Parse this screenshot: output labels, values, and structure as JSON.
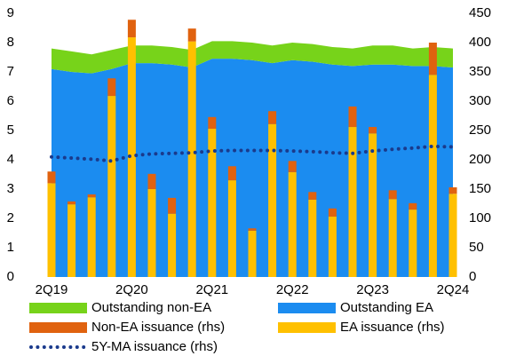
{
  "chart_data": {
    "type": "combo",
    "categories": [
      "2Q19",
      null,
      null,
      null,
      "2Q20",
      null,
      null,
      null,
      "2Q21",
      null,
      null,
      null,
      "2Q22",
      null,
      null,
      null,
      "2Q23",
      null,
      null,
      null,
      "2Q24"
    ],
    "ylim": [
      0,
      9
    ],
    "yticks": [
      0,
      1,
      2,
      3,
      4,
      5,
      6,
      7,
      8,
      9
    ],
    "y2lim": [
      0,
      450
    ],
    "y2ticks": [
      0,
      50,
      100,
      150,
      200,
      250,
      300,
      350,
      400,
      450
    ],
    "series": [
      {
        "name": "Outstanding non-EA",
        "type": "area",
        "color": "#77d31a",
        "values": [
          0.7,
          0.7,
          0.65,
          0.65,
          0.6,
          0.6,
          0.6,
          0.6,
          0.6,
          0.6,
          0.6,
          0.6,
          0.6,
          0.6,
          0.6,
          0.6,
          0.65,
          0.65,
          0.6,
          0.65,
          0.65
        ]
      },
      {
        "name": "Outstanding EA",
        "type": "area",
        "color": "#1b8cf0",
        "values": [
          7.1,
          7.0,
          6.95,
          7.1,
          7.3,
          7.3,
          7.25,
          7.15,
          7.45,
          7.45,
          7.4,
          7.3,
          7.4,
          7.35,
          7.25,
          7.2,
          7.25,
          7.25,
          7.2,
          7.2,
          7.15
        ]
      },
      {
        "name": "Non-EA issuance (rhs)",
        "type": "bar",
        "axis": "y2",
        "color": "#e0620f",
        "values": [
          20,
          5,
          5,
          30,
          30,
          26,
          27,
          22,
          20,
          24,
          4,
          22,
          19,
          13,
          14,
          35,
          11,
          15,
          11,
          55,
          11
        ]
      },
      {
        "name": "EA issuance (rhs)",
        "type": "bar",
        "axis": "y2",
        "color": "#ffc000",
        "values": [
          160,
          124,
          136,
          309,
          409,
          150,
          108,
          402,
          253,
          165,
          79,
          261,
          179,
          132,
          103,
          256,
          245,
          133,
          115,
          345,
          142
        ]
      },
      {
        "name": "5Y-MA issuance (rhs)",
        "type": "line",
        "axis": "y2",
        "color": "#1a3a8c",
        "values": [
          205,
          203,
          201,
          198,
          207,
          210,
          211,
          212,
          215,
          216,
          216,
          216,
          215,
          214,
          212,
          211,
          215,
          218,
          220,
          223,
          222
        ]
      }
    ]
  }
}
